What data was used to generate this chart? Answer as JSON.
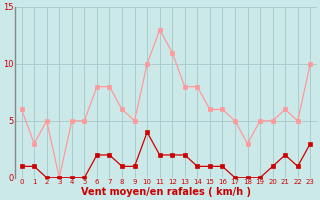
{
  "x": [
    0,
    1,
    2,
    3,
    4,
    5,
    6,
    7,
    8,
    9,
    10,
    11,
    12,
    13,
    14,
    15,
    16,
    17,
    18,
    19,
    20,
    21,
    22,
    23
  ],
  "wind_avg": [
    1,
    1,
    0,
    0,
    0,
    0,
    2,
    2,
    1,
    1,
    4,
    2,
    2,
    2,
    1,
    1,
    1,
    0,
    0,
    0,
    1,
    2,
    1,
    3
  ],
  "wind_gust": [
    6,
    3,
    5,
    0,
    5,
    5,
    8,
    8,
    6,
    5,
    10,
    13,
    11,
    8,
    8,
    6,
    6,
    5,
    3,
    5,
    5,
    6,
    5,
    10
  ],
  "xlabel": "Vent moyen/en rafales ( km/h )",
  "ylim": [
    0,
    15
  ],
  "yticks": [
    0,
    5,
    10,
    15
  ],
  "xticks": [
    0,
    1,
    2,
    3,
    4,
    5,
    6,
    7,
    8,
    9,
    10,
    11,
    12,
    13,
    14,
    15,
    16,
    17,
    18,
    19,
    20,
    21,
    22,
    23
  ],
  "bg_color": "#cce9e9",
  "grid_color": "#aacccc",
  "line_avg_color": "#cc0000",
  "line_gust_color": "#ff9999",
  "marker_avg": "s",
  "marker_gust": "s",
  "marker_size_avg": 2.5,
  "marker_size_gust": 2.5,
  "line_width": 0.9,
  "xlabel_color": "#cc0000",
  "tick_color": "#cc0000",
  "xlabel_fontsize": 7,
  "tick_fontsize_x": 5,
  "tick_fontsize_y": 6,
  "left_spine_color": "#888888"
}
